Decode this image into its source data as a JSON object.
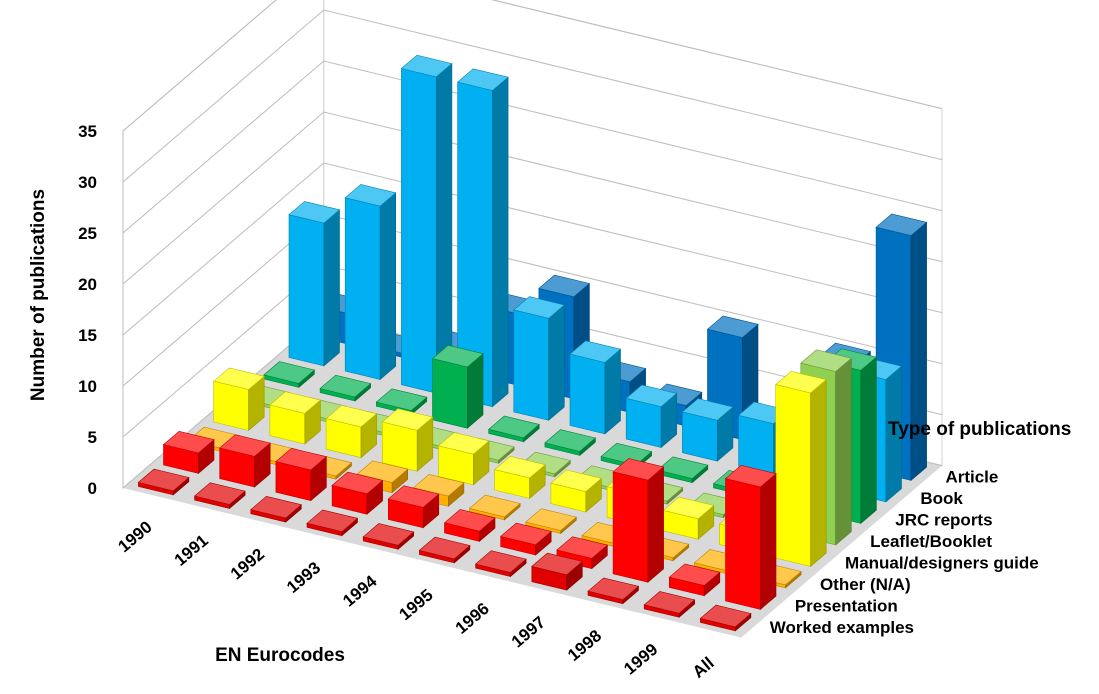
{
  "chart_data": {
    "type": "bar",
    "subtype": "3d-column",
    "title": "",
    "zlabel": "Number of publications",
    "xlabel": "EN Eurocodes",
    "ylabel": "Type of publications",
    "zlim": [
      0,
      35
    ],
    "zticks": [
      "0",
      "5",
      "10",
      "15",
      "20",
      "25",
      "30",
      "35"
    ],
    "grid": true,
    "categories": [
      "1990",
      "1991",
      "1992",
      "1993",
      "1994",
      "1995",
      "1996",
      "1997",
      "1998",
      "1999",
      "All"
    ],
    "series": [
      {
        "name": "Worked examples",
        "color": "#e00000",
        "values": [
          0.4,
          0.4,
          0.4,
          0.4,
          0.4,
          0.4,
          0.4,
          1.5,
          0.4,
          0.4,
          0.4
        ]
      },
      {
        "name": "Presentation",
        "color": "#ff0000",
        "values": [
          2,
          3,
          3,
          2,
          2,
          1,
          1,
          1,
          10,
          1,
          12
        ]
      },
      {
        "name": "Other (N/A)",
        "color": "#ffb000",
        "values": [
          0.3,
          0.3,
          0.3,
          1,
          1,
          0.3,
          0.3,
          0.3,
          0.3,
          0.3,
          0.3
        ]
      },
      {
        "name": "Manual/designers guide",
        "color": "#ffff00",
        "values": [
          4,
          3,
          3,
          4,
          3,
          2,
          2,
          3,
          2,
          2,
          17
        ]
      },
      {
        "name": "Leaflet/Booklet",
        "color": "#90d050",
        "values": [
          0.3,
          0.3,
          0.3,
          0.3,
          0.3,
          0.3,
          0.3,
          0.3,
          0.3,
          0.3,
          17
        ]
      },
      {
        "name": "JRC reports",
        "color": "#00b050",
        "values": [
          0.4,
          0.4,
          0.4,
          6,
          0.4,
          0.4,
          0.4,
          0.4,
          0.4,
          0.4,
          15
        ]
      },
      {
        "name": "Book",
        "color": "#00b0f0",
        "values": [
          14,
          17,
          31,
          31,
          10,
          7,
          4,
          4,
          5,
          5,
          12
        ]
      },
      {
        "name": "Article",
        "color": "#0070c0",
        "values": [
          3,
          0.4,
          2,
          7,
          10,
          3,
          2,
          10,
          0.4,
          10,
          24
        ]
      }
    ]
  }
}
